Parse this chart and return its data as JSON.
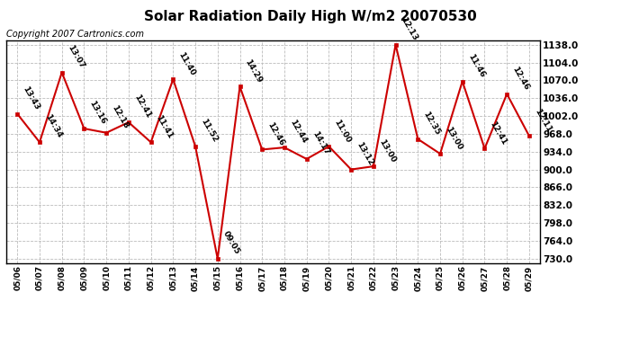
{
  "title": "Solar Radiation Daily High W/m2 20070530",
  "copyright": "Copyright 2007 Cartronics.com",
  "dates": [
    "05/06",
    "05/07",
    "05/08",
    "05/09",
    "05/10",
    "05/11",
    "05/12",
    "05/13",
    "05/14",
    "05/15",
    "05/16",
    "05/17",
    "05/18",
    "05/19",
    "05/20",
    "05/21",
    "05/22",
    "05/23",
    "05/24",
    "05/25",
    "05/26",
    "05/27",
    "05/28",
    "05/29"
  ],
  "values": [
    1006,
    952,
    1085,
    978,
    970,
    990,
    952,
    1072,
    944,
    730,
    1058,
    938,
    942,
    920,
    944,
    900,
    906,
    1138,
    958,
    930,
    1068,
    940,
    1044,
    964
  ],
  "labels": [
    "13:43",
    "14:34",
    "13:07",
    "13:16",
    "12:18",
    "12:41",
    "11:41",
    "11:40",
    "11:52",
    "09:05",
    "14:29",
    "12:46",
    "12:44",
    "14:17",
    "11:00",
    "13:12",
    "13:00",
    "12:13",
    "12:35",
    "13:00",
    "11:46",
    "12:41",
    "12:46",
    "12:11"
  ],
  "line_color": "#cc0000",
  "marker_color": "#cc0000",
  "background_color": "#ffffff",
  "grid_color": "#bbbbbb",
  "title_fontsize": 11,
  "label_fontsize": 6.5,
  "copyright_fontsize": 7,
  "ylim_min": 730.0,
  "ylim_max": 1138.0,
  "ytick_values": [
    730.0,
    764.0,
    798.0,
    832.0,
    866.0,
    900.0,
    934.0,
    968.0,
    1002.0,
    1036.0,
    1070.0,
    1104.0,
    1138.0
  ]
}
